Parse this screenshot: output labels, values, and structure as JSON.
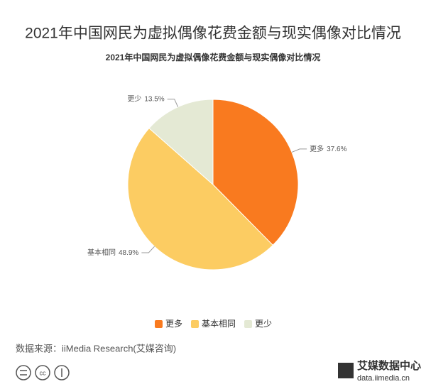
{
  "page_title": "2021年中国网民为虚拟偶像花费金额与现实偶像对比情况",
  "chart_data": {
    "type": "pie",
    "title": "2021年中国网民为虚拟偶像花费金额与现实偶像对比情况",
    "categories": [
      "更多",
      "基本相同",
      "更少"
    ],
    "values": [
      37.6,
      48.9,
      13.5
    ],
    "value_labels": [
      "37.6%",
      "48.9%",
      "13.5%"
    ],
    "colors": [
      "#f97a1f",
      "#fccc62",
      "#e4e9d4"
    ],
    "legend": "bottom"
  },
  "source": "数据来源：iiMedia Research(艾媒咨询)",
  "logo": {
    "name": "艾媒数据中心",
    "url": "data.iimedia.cn"
  }
}
